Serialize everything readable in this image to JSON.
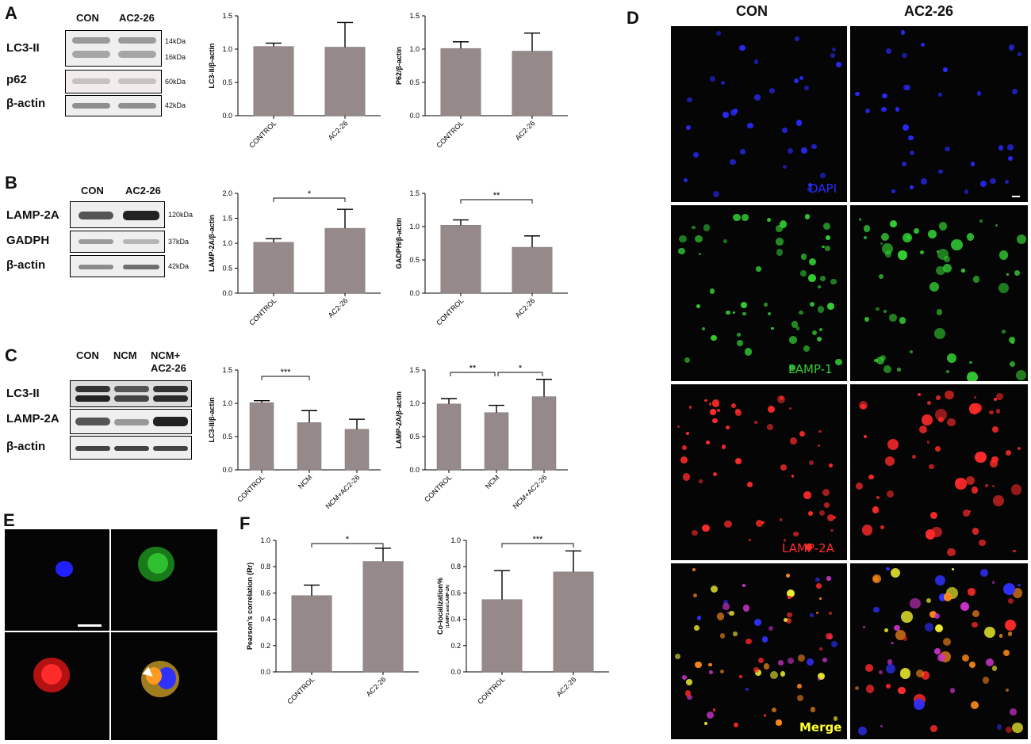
{
  "panels": {
    "A": "A",
    "B": "B",
    "C": "C",
    "D": "D",
    "E": "E",
    "F": "F"
  },
  "blots": {
    "A": {
      "cols": [
        "CON",
        "AC2-26"
      ],
      "rows": [
        "LC3-II",
        "p62",
        "β-actin"
      ],
      "kda": [
        "14kDa",
        "16kDa",
        "60kDa",
        "42kDa"
      ]
    },
    "B": {
      "cols": [
        "CON",
        "AC2-26"
      ],
      "rows": [
        "LAMP-2A",
        "GADPH",
        "β-actin"
      ],
      "kda": [
        "120kDa",
        "37kDa",
        "42kDa"
      ]
    },
    "C": {
      "cols": [
        "CON",
        "NCM",
        "NCM+",
        "AC2-26"
      ],
      "rows": [
        "LC3-II",
        "LAMP-2A",
        "β-actin"
      ]
    }
  },
  "micrographs": {
    "D": {
      "cols": [
        "CON",
        "AC2-26"
      ],
      "rows": [
        "DAPI",
        "LAMP-1",
        "LAMP-2A",
        "Merge"
      ],
      "colors": {
        "DAPI": "#2a2aff",
        "LAMP-1": "#33cc33",
        "LAMP-2A": "#ff2a2a",
        "Merge": "#ffff33"
      }
    }
  },
  "chart_data": [
    {
      "id": "A1",
      "type": "bar",
      "categories": [
        "CONTROL",
        "AC2-26"
      ],
      "values": [
        1.04,
        1.03
      ],
      "errors": [
        0.05,
        0.37
      ],
      "ylabel": "LC3-II/β-actin",
      "ylim": [
        0,
        1.5
      ],
      "yticks": [
        "0.0",
        "0.5",
        "1.0",
        "1.5"
      ],
      "significance": []
    },
    {
      "id": "A2",
      "type": "bar",
      "categories": [
        "CONTROL",
        "AC2-26"
      ],
      "values": [
        1.01,
        0.97
      ],
      "errors": [
        0.1,
        0.27
      ],
      "ylabel": "P62/β-actin",
      "ylim": [
        0,
        1.5
      ],
      "yticks": [
        "0.0",
        "0.5",
        "1.0",
        "1.5"
      ],
      "significance": []
    },
    {
      "id": "B1",
      "type": "bar",
      "categories": [
        "CONTROL",
        "AC2-26"
      ],
      "values": [
        1.02,
        1.3
      ],
      "errors": [
        0.07,
        0.38
      ],
      "ylabel": "LAMP-2A/β-actin",
      "ylim": [
        0,
        2.0
      ],
      "yticks": [
        "0.0",
        "0.5",
        "1.0",
        "1.5",
        "2.0"
      ],
      "significance": [
        {
          "from": 0,
          "to": 1,
          "label": "*"
        }
      ]
    },
    {
      "id": "B2",
      "type": "bar",
      "categories": [
        "CONTROL",
        "AC2-26"
      ],
      "values": [
        1.02,
        0.69
      ],
      "errors": [
        0.08,
        0.17
      ],
      "ylabel": "GADPH/β-actin",
      "ylim": [
        0,
        1.5
      ],
      "yticks": [
        "0.0",
        "0.5",
        "1.0",
        "1.5"
      ],
      "significance": [
        {
          "from": 0,
          "to": 1,
          "label": "**"
        }
      ]
    },
    {
      "id": "C1",
      "type": "bar",
      "categories": [
        "CONTROL",
        "NCM",
        "NCM+AC2-26"
      ],
      "values": [
        1.01,
        0.71,
        0.61
      ],
      "errors": [
        0.03,
        0.18,
        0.15
      ],
      "ylabel": "LC3-II/β-actin",
      "ylim": [
        0,
        1.5
      ],
      "yticks": [
        "0.0",
        "0.5",
        "1.0",
        "1.5"
      ],
      "significance": [
        {
          "from": 0,
          "to": 1,
          "label": "***"
        }
      ]
    },
    {
      "id": "C2",
      "type": "bar",
      "categories": [
        "CONTROL",
        "NCM",
        "NCM+AC2-26"
      ],
      "values": [
        0.99,
        0.86,
        1.1
      ],
      "errors": [
        0.08,
        0.11,
        0.26
      ],
      "ylabel": "LAMP-2A/β-actin",
      "ylim": [
        0,
        1.5
      ],
      "yticks": [
        "0.0",
        "0.5",
        "1.0",
        "1.5"
      ],
      "significance": [
        {
          "from": 0,
          "to": 1,
          "label": "**"
        },
        {
          "from": 1,
          "to": 2,
          "label": "*"
        }
      ]
    },
    {
      "id": "F1",
      "type": "bar",
      "categories": [
        "CONTROL",
        "AC2-26"
      ],
      "values": [
        0.58,
        0.84
      ],
      "errors": [
        0.08,
        0.1
      ],
      "ylabel": "Pearson's correlation (Rr)",
      "ylim": [
        0,
        1.0
      ],
      "yticks": [
        "0.0",
        "0.2",
        "0.4",
        "0.6",
        "0.8",
        "1.0"
      ],
      "significance": [
        {
          "from": 0,
          "to": 1,
          "label": "*"
        }
      ]
    },
    {
      "id": "F2",
      "type": "bar",
      "categories": [
        "CONTROL",
        "AC2-26"
      ],
      "values": [
        0.55,
        0.76
      ],
      "errors": [
        0.22,
        0.16
      ],
      "ylabel": "Co-localization%",
      "ylabel_sub": "(LAMP1 and LAMP-2A)",
      "ylim": [
        0,
        1.0
      ],
      "yticks": [
        "0.0",
        "0.2",
        "0.4",
        "0.6",
        "0.8",
        "1.0"
      ],
      "significance": [
        {
          "from": 0,
          "to": 1,
          "label": "***"
        }
      ]
    }
  ]
}
